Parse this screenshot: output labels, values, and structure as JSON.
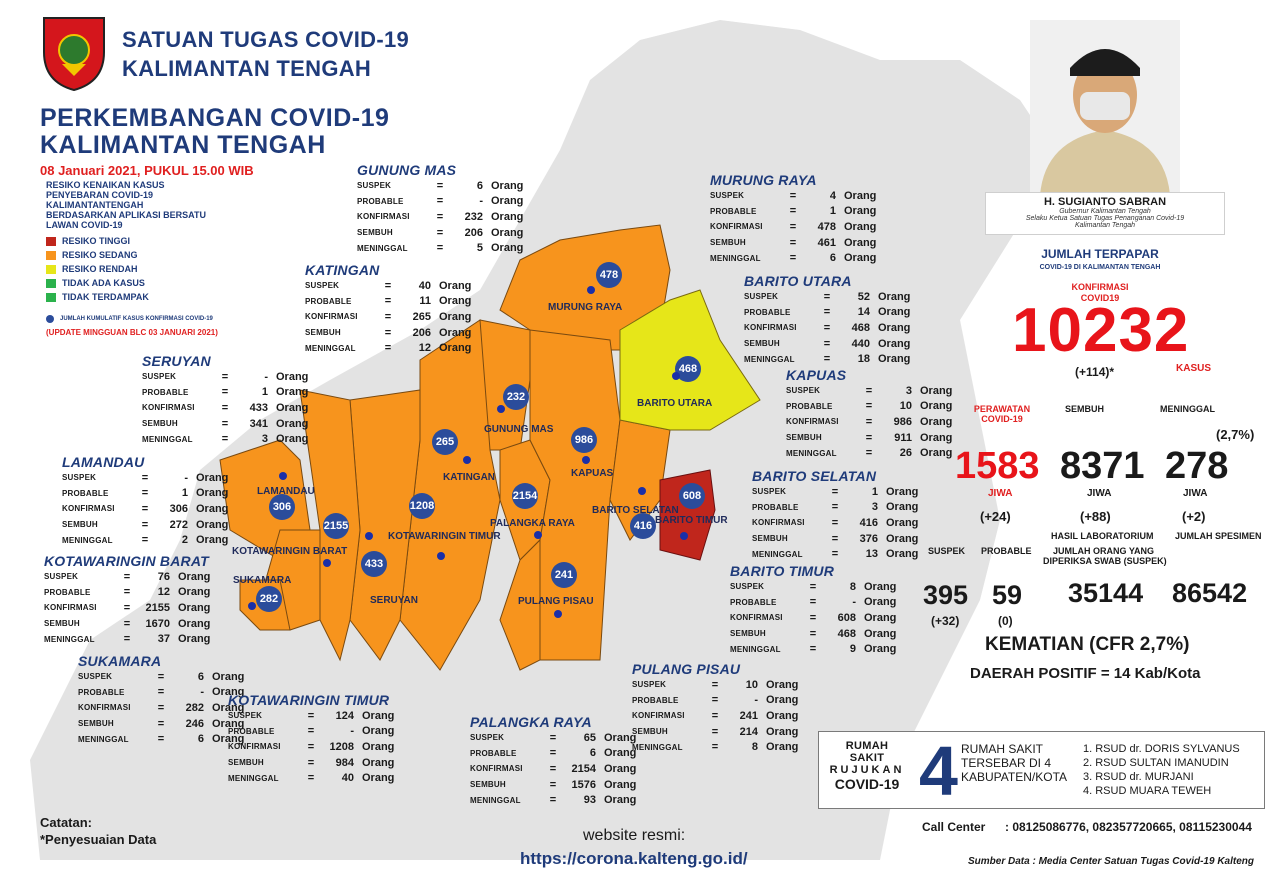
{
  "header": {
    "org_line1": "SATUAN TUGAS COVID-19",
    "org_line2": "KALIMANTAN TENGAH",
    "title_line1": "PERKEMBANGAN COVID-19",
    "title_line2": "KALIMANTAN TENGAH",
    "date": "08 Januari 2021, PUKUL 15.00 WIB"
  },
  "legend": {
    "title": "RESIKO KENAIKAN KASUS PENYEBARAN COVID-19 KALIMANTANTENGAH BERDASARKAN APLIKASI BERSATU LAWAN COVID-19",
    "items": [
      {
        "label": "RESIKO TINGGI",
        "color": "#c0261c"
      },
      {
        "label": "RESIKO SEDANG",
        "color": "#f7941d"
      },
      {
        "label": "RESIKO RENDAH",
        "color": "#e6e619"
      },
      {
        "label": "TIDAK ADA KASUS",
        "color": "#2bb24c"
      },
      {
        "label": "TIDAK TERDAMPAK",
        "color": "#2bb24c"
      }
    ],
    "dot_note": "JUMLAH KUMULATIF KASUS KONFIRMASI COVID-19",
    "update_note": "(UPDATE MINGGUAN BLC 03 JANUARI 2021)"
  },
  "units": {
    "orang": "Orang",
    "eq": "="
  },
  "row_labels": [
    "SUSPEK",
    "PROBABLE",
    "KONFIRMASI",
    "SEMBUH",
    "MENINGGAL"
  ],
  "regencies": {
    "gunung_mas": {
      "name": "GUNUNG MAS",
      "values": [
        "6",
        "-",
        "232",
        "206",
        "5"
      ],
      "badge": "232",
      "map_label": "GUNUNG MAS"
    },
    "murung_raya": {
      "name": "MURUNG RAYA",
      "values": [
        "4",
        "1",
        "478",
        "461",
        "6"
      ],
      "badge": "478",
      "map_label": "MURUNG RAYA"
    },
    "katingan": {
      "name": "KATINGAN",
      "values": [
        "40",
        "11",
        "265",
        "206",
        "12"
      ],
      "badge": "265",
      "map_label": "KATINGAN"
    },
    "barito_utara": {
      "name": "BARITO UTARA",
      "values": [
        "52",
        "14",
        "468",
        "440",
        "18"
      ],
      "badge": "468",
      "map_label": "BARITO UTARA"
    },
    "seruyan": {
      "name": "SERUYAN",
      "values": [
        "-",
        "1",
        "433",
        "341",
        "3"
      ],
      "badge": "433",
      "map_label": "SERUYAN"
    },
    "kapuas": {
      "name": "KAPUAS",
      "values": [
        "3",
        "10",
        "986",
        "911",
        "26"
      ],
      "badge": "986",
      "map_label": "KAPUAS"
    },
    "lamandau": {
      "name": "LAMANDAU",
      "values": [
        "-",
        "1",
        "306",
        "272",
        "2"
      ],
      "badge": "306",
      "map_label": "LAMANDAU"
    },
    "barito_selatan": {
      "name": "BARITO SELATAN",
      "values": [
        "1",
        "3",
        "416",
        "376",
        "13"
      ],
      "badge": "416",
      "map_label": "BARITO SELATAN"
    },
    "kotawaringin_barat": {
      "name": "KOTAWARINGIN BARAT",
      "values": [
        "76",
        "12",
        "2155",
        "1670",
        "37"
      ],
      "badge": "2155",
      "map_label": "KOTAWARINGIN BARAT"
    },
    "barito_timur": {
      "name": "BARITO TIMUR",
      "values": [
        "8",
        "-",
        "608",
        "468",
        "9"
      ],
      "badge": "608",
      "map_label": "BARITO TIMUR"
    },
    "sukamara": {
      "name": "SUKAMARA",
      "values": [
        "6",
        "-",
        "282",
        "246",
        "6"
      ],
      "badge": "282",
      "map_label": "SUKAMARA"
    },
    "pulang_pisau": {
      "name": "PULANG PISAU",
      "values": [
        "10",
        "-",
        "241",
        "214",
        "8"
      ],
      "badge": "241",
      "map_label": "PULANG PISAU"
    },
    "kotawaringin_timur": {
      "name": "KOTAWARINGIN TIMUR",
      "values": [
        "124",
        "-",
        "1208",
        "984",
        "40"
      ],
      "badge": "1208",
      "map_label": "KOTAWARINGIN TIMUR"
    },
    "palangka_raya": {
      "name": "PALANGKA RAYA",
      "values": [
        "65",
        "6",
        "2154",
        "1576",
        "93"
      ],
      "badge": "2154",
      "map_label": "PALANGKA RAYA"
    }
  },
  "governor": {
    "name": "H. SUGIANTO SABRAN",
    "role1": "Gubernur Kalimantan Tengah",
    "role2": "Selaku Ketua Satuan Tugas Penanganan Covid-19",
    "role3": "Kalimantan Tengah"
  },
  "stats": {
    "exposed_title": "JUMLAH TERPAPAR",
    "exposed_sub": "COVID-19 DI KALIMANTAN TENGAH",
    "confirm_label1": "KONFIRMASI",
    "confirm_label2": "COVID19",
    "confirm_total": "10232",
    "confirm_delta": "(+114)*",
    "kasus": "KASUS",
    "care_label1": "PERAWATAN",
    "care_label2": "COVID-19",
    "recovered_label": "SEMBUH",
    "death_label": "MENINGGAL",
    "death_pct": "(2,7%)",
    "care_value": "1583",
    "recovered_value": "8371",
    "death_value": "278",
    "jiwa": "JIWA",
    "care_delta": "(+24)",
    "recovered_delta": "(+88)",
    "death_delta": "(+2)",
    "suspek_label": "SUSPEK",
    "probable_label": "PROBABLE",
    "lab_label": "HASIL LABORATORIUM",
    "specimen_label": "JUMLAH SPESIMEN",
    "swab_label1": "JUMLAH ORANG YANG",
    "swab_label2": "DIPERIKSA SWAB (SUSPEK)",
    "suspek_value": "395",
    "probable_value": "59",
    "lab_value": "35144",
    "specimen_value": "86542",
    "suspek_delta": "(+32)",
    "probable_delta": "(0)",
    "cfr": "KEMATIAN (CFR 2,7%)",
    "positive_area": "DAERAH POSITIF = 14 Kab/Kota"
  },
  "hospital": {
    "label1": "RUMAH SAKIT",
    "label2": "RUJUKAN",
    "label3": "COVID-19",
    "count": "4",
    "desc1": "RUMAH SAKIT",
    "desc2": "TERSEBAR DI 4",
    "desc3": "KABUPATEN/KOTA",
    "list": [
      "1. RSUD dr. DORIS SYLVANUS",
      "2. RSUD SULTAN IMANUDIN",
      "3. RSUD dr. MURJANI",
      "4. RSUD MUARA TEWEH"
    ]
  },
  "footer": {
    "call_center_label": "Call Center",
    "call_center_numbers": ": 08125086776, 082357720665, 08115230044",
    "source": "Sumber Data : Media Center Satuan Tugas Covid-19 Kalteng",
    "website_label": "website resmi:",
    "website_url": "https://corona.kalteng.go.id/",
    "note_title": "Catatan:",
    "note_body": "*Penyesuaian Data"
  }
}
